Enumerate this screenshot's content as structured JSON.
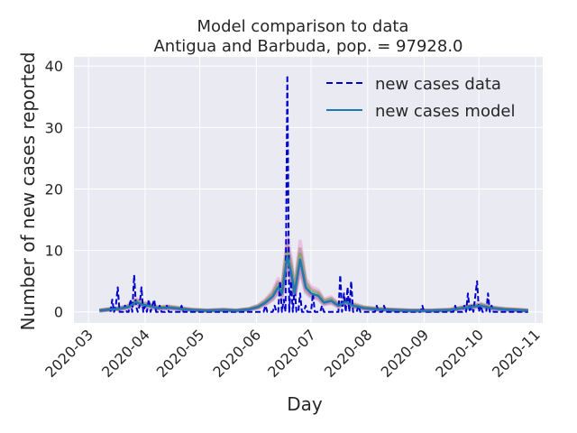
{
  "chart_data": {
    "type": "line",
    "title": "Model comparison to data",
    "subtitle": "Antigua and Barbuda, pop. = 97928.0",
    "xlabel": "Day",
    "ylabel": "Number of new cases reported",
    "x_range": [
      "2020-02-22",
      "2020-11-05"
    ],
    "ylim": [
      -1.8,
      41.5
    ],
    "yticks": [
      0,
      10,
      20,
      30,
      40
    ],
    "xticks": [
      "2020-03",
      "2020-04",
      "2020-05",
      "2020-06",
      "2020-07",
      "2020-08",
      "2020-09",
      "2020-10",
      "2020-11"
    ],
    "grid": true,
    "legend_position": "top-right",
    "series": [
      {
        "name": "new cases data",
        "style": "dashed",
        "color": "#0000cc",
        "points": [
          [
            "2020-03-13",
            0
          ],
          [
            "2020-03-14",
            2
          ],
          [
            "2020-03-15",
            0
          ],
          [
            "2020-03-16",
            1
          ],
          [
            "2020-03-17",
            4
          ],
          [
            "2020-03-18",
            0
          ],
          [
            "2020-03-20",
            0
          ],
          [
            "2020-03-21",
            1
          ],
          [
            "2020-03-22",
            0
          ],
          [
            "2020-03-23",
            0
          ],
          [
            "2020-03-24",
            2
          ],
          [
            "2020-03-25",
            0
          ],
          [
            "2020-03-26",
            6
          ],
          [
            "2020-03-27",
            1
          ],
          [
            "2020-03-28",
            0
          ],
          [
            "2020-03-29",
            1
          ],
          [
            "2020-03-30",
            4
          ],
          [
            "2020-03-31",
            0
          ],
          [
            "2020-04-01",
            1
          ],
          [
            "2020-04-02",
            0
          ],
          [
            "2020-04-03",
            2
          ],
          [
            "2020-04-04",
            0
          ],
          [
            "2020-04-05",
            1
          ],
          [
            "2020-04-06",
            2
          ],
          [
            "2020-04-07",
            0
          ],
          [
            "2020-04-08",
            0
          ],
          [
            "2020-04-09",
            1
          ],
          [
            "2020-04-10",
            0
          ],
          [
            "2020-04-12",
            0
          ],
          [
            "2020-04-13",
            1
          ],
          [
            "2020-04-14",
            0
          ],
          [
            "2020-04-20",
            0
          ],
          [
            "2020-04-21",
            1
          ],
          [
            "2020-04-22",
            0
          ],
          [
            "2020-06-05",
            0
          ],
          [
            "2020-06-06",
            1
          ],
          [
            "2020-06-07",
            0
          ],
          [
            "2020-06-10",
            0
          ],
          [
            "2020-06-11",
            1
          ],
          [
            "2020-06-12",
            0
          ],
          [
            "2020-06-13",
            0
          ],
          [
            "2020-06-14",
            5
          ],
          [
            "2020-06-15",
            0
          ],
          [
            "2020-06-16",
            2
          ],
          [
            "2020-06-17",
            0
          ],
          [
            "2020-06-18",
            38.5
          ],
          [
            "2020-06-19",
            0
          ],
          [
            "2020-06-20",
            5
          ],
          [
            "2020-06-21",
            0
          ],
          [
            "2020-06-22",
            4
          ],
          [
            "2020-06-23",
            0
          ],
          [
            "2020-06-24",
            0
          ],
          [
            "2020-06-25",
            3
          ],
          [
            "2020-06-26",
            0
          ],
          [
            "2020-06-27",
            0
          ],
          [
            "2020-06-28",
            1
          ],
          [
            "2020-06-29",
            0
          ],
          [
            "2020-07-01",
            0
          ],
          [
            "2020-07-02",
            3
          ],
          [
            "2020-07-03",
            0
          ],
          [
            "2020-07-06",
            0
          ],
          [
            "2020-07-07",
            1
          ],
          [
            "2020-07-08",
            0
          ],
          [
            "2020-07-16",
            0
          ],
          [
            "2020-07-17",
            6
          ],
          [
            "2020-07-18",
            0
          ],
          [
            "2020-07-19",
            3
          ],
          [
            "2020-07-20",
            0
          ],
          [
            "2020-07-21",
            4
          ],
          [
            "2020-07-22",
            0
          ],
          [
            "2020-07-23",
            5
          ],
          [
            "2020-07-24",
            0
          ],
          [
            "2020-07-26",
            0
          ],
          [
            "2020-07-27",
            1
          ],
          [
            "2020-07-28",
            0
          ],
          [
            "2020-08-05",
            0
          ],
          [
            "2020-08-06",
            1
          ],
          [
            "2020-08-07",
            0
          ],
          [
            "2020-08-09",
            0
          ],
          [
            "2020-08-10",
            1
          ],
          [
            "2020-08-11",
            0
          ],
          [
            "2020-08-30",
            0
          ],
          [
            "2020-08-31",
            1
          ],
          [
            "2020-09-01",
            0
          ],
          [
            "2020-09-17",
            0
          ],
          [
            "2020-09-18",
            1
          ],
          [
            "2020-09-19",
            0
          ],
          [
            "2020-09-22",
            0
          ],
          [
            "2020-09-23",
            1
          ],
          [
            "2020-09-24",
            0
          ],
          [
            "2020-09-25",
            3
          ],
          [
            "2020-09-26",
            0
          ],
          [
            "2020-09-27",
            1
          ],
          [
            "2020-09-28",
            0
          ],
          [
            "2020-09-30",
            5
          ],
          [
            "2020-10-01",
            0
          ],
          [
            "2020-10-02",
            1
          ],
          [
            "2020-10-03",
            0
          ],
          [
            "2020-10-05",
            0
          ],
          [
            "2020-10-06",
            3
          ],
          [
            "2020-10-07",
            0
          ],
          [
            "2020-10-08",
            1
          ],
          [
            "2020-10-09",
            0
          ],
          [
            "2020-10-28",
            0
          ]
        ]
      },
      {
        "name": "new cases model",
        "style": "solid",
        "color": "#1f77b4",
        "points": [
          [
            "2020-03-07",
            0.2
          ],
          [
            "2020-03-13",
            0.4
          ],
          [
            "2020-03-18",
            0.5
          ],
          [
            "2020-03-23",
            0.8
          ],
          [
            "2020-03-27",
            1.6
          ],
          [
            "2020-03-30",
            1.2
          ],
          [
            "2020-04-03",
            1.0
          ],
          [
            "2020-04-08",
            0.6
          ],
          [
            "2020-04-14",
            0.7
          ],
          [
            "2020-04-20",
            0.5
          ],
          [
            "2020-04-27",
            0.3
          ],
          [
            "2020-05-05",
            0.2
          ],
          [
            "2020-05-14",
            0.3
          ],
          [
            "2020-05-21",
            0.2
          ],
          [
            "2020-05-28",
            0.4
          ],
          [
            "2020-06-02",
            0.8
          ],
          [
            "2020-06-06",
            1.5
          ],
          [
            "2020-06-10",
            2.5
          ],
          [
            "2020-06-13",
            4.0
          ],
          [
            "2020-06-15",
            3.0
          ],
          [
            "2020-06-18",
            9.0
          ],
          [
            "2020-06-20",
            6.5
          ],
          [
            "2020-06-22",
            3.0
          ],
          [
            "2020-06-25",
            8.5
          ],
          [
            "2020-06-28",
            4.0
          ],
          [
            "2020-07-01",
            3.0
          ],
          [
            "2020-07-05",
            2.6
          ],
          [
            "2020-07-08",
            1.5
          ],
          [
            "2020-07-12",
            1.8
          ],
          [
            "2020-07-16",
            1.0
          ],
          [
            "2020-07-20",
            1.6
          ],
          [
            "2020-07-24",
            1.0
          ],
          [
            "2020-07-30",
            0.6
          ],
          [
            "2020-08-07",
            0.4
          ],
          [
            "2020-08-15",
            0.3
          ],
          [
            "2020-08-25",
            0.2
          ],
          [
            "2020-09-05",
            0.2
          ],
          [
            "2020-09-15",
            0.3
          ],
          [
            "2020-09-22",
            0.6
          ],
          [
            "2020-09-27",
            0.8
          ],
          [
            "2020-10-02",
            1.0
          ],
          [
            "2020-10-08",
            0.6
          ],
          [
            "2020-10-15",
            0.4
          ],
          [
            "2020-10-22",
            0.3
          ],
          [
            "2020-10-28",
            0.2
          ]
        ]
      }
    ],
    "ensemble_band_colors": [
      "#e377c2",
      "#8c564b",
      "#2ca02c",
      "#d62728",
      "#9467bd"
    ]
  }
}
